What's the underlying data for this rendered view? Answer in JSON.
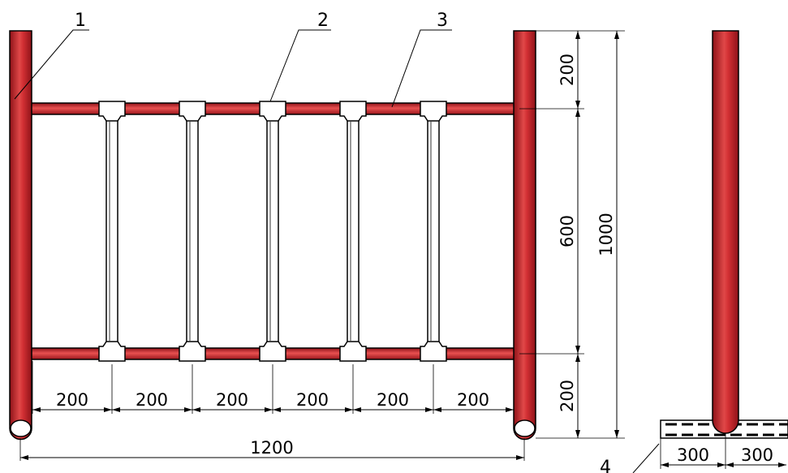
{
  "callouts": {
    "post": "1",
    "clamp": "2",
    "rail": "3",
    "footing": "4"
  },
  "dimensions": {
    "top_gap": "200",
    "mid_gap": "600",
    "bottom_gap": "200",
    "total_height": "1000",
    "spacings": [
      "200",
      "200",
      "200",
      "200",
      "200",
      "200"
    ],
    "total_width": "1200",
    "footing_left": "300",
    "footing_right": "300"
  },
  "colors": {
    "pipe": "#c8232a",
    "pipe_dark": "#8e1218",
    "pipe_light": "#ef6a6a",
    "line": "#000000"
  }
}
